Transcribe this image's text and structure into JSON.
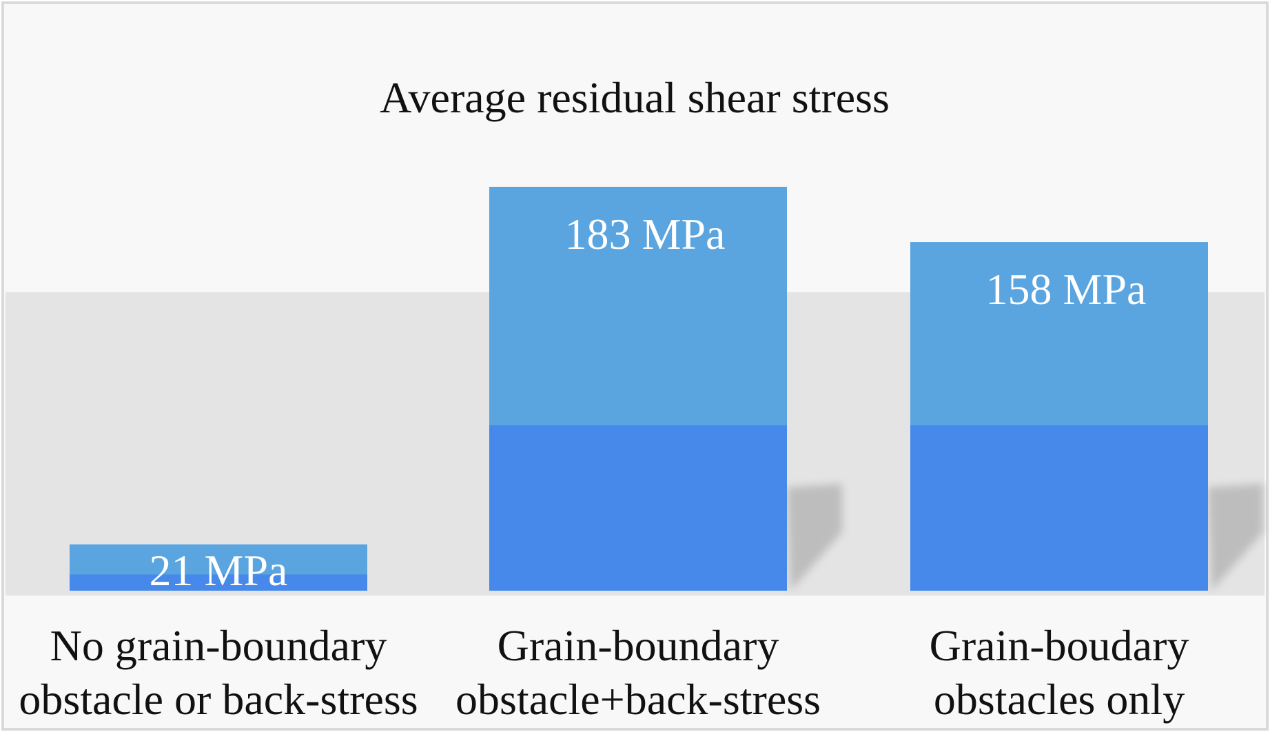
{
  "chart_data": {
    "type": "bar",
    "title": "Average residual shear stress",
    "categories": [
      [
        "No grain-boundary",
        "obstacle or back-stress"
      ],
      [
        "Grain-boundary",
        "obstacle+back-stress"
      ],
      [
        "Grain-boudary",
        "obstacles only"
      ]
    ],
    "values": [
      21,
      183,
      158
    ],
    "value_labels": [
      "21 MPa",
      "183 MPa",
      "158 MPa"
    ],
    "unit": "MPa",
    "ylim": [
      0,
      183
    ],
    "grid": false,
    "legend": "none",
    "bar_color_top": "#5aa5e0",
    "bar_color_bottom": "#4689ea",
    "shadow_color": "#bdbdbd"
  }
}
